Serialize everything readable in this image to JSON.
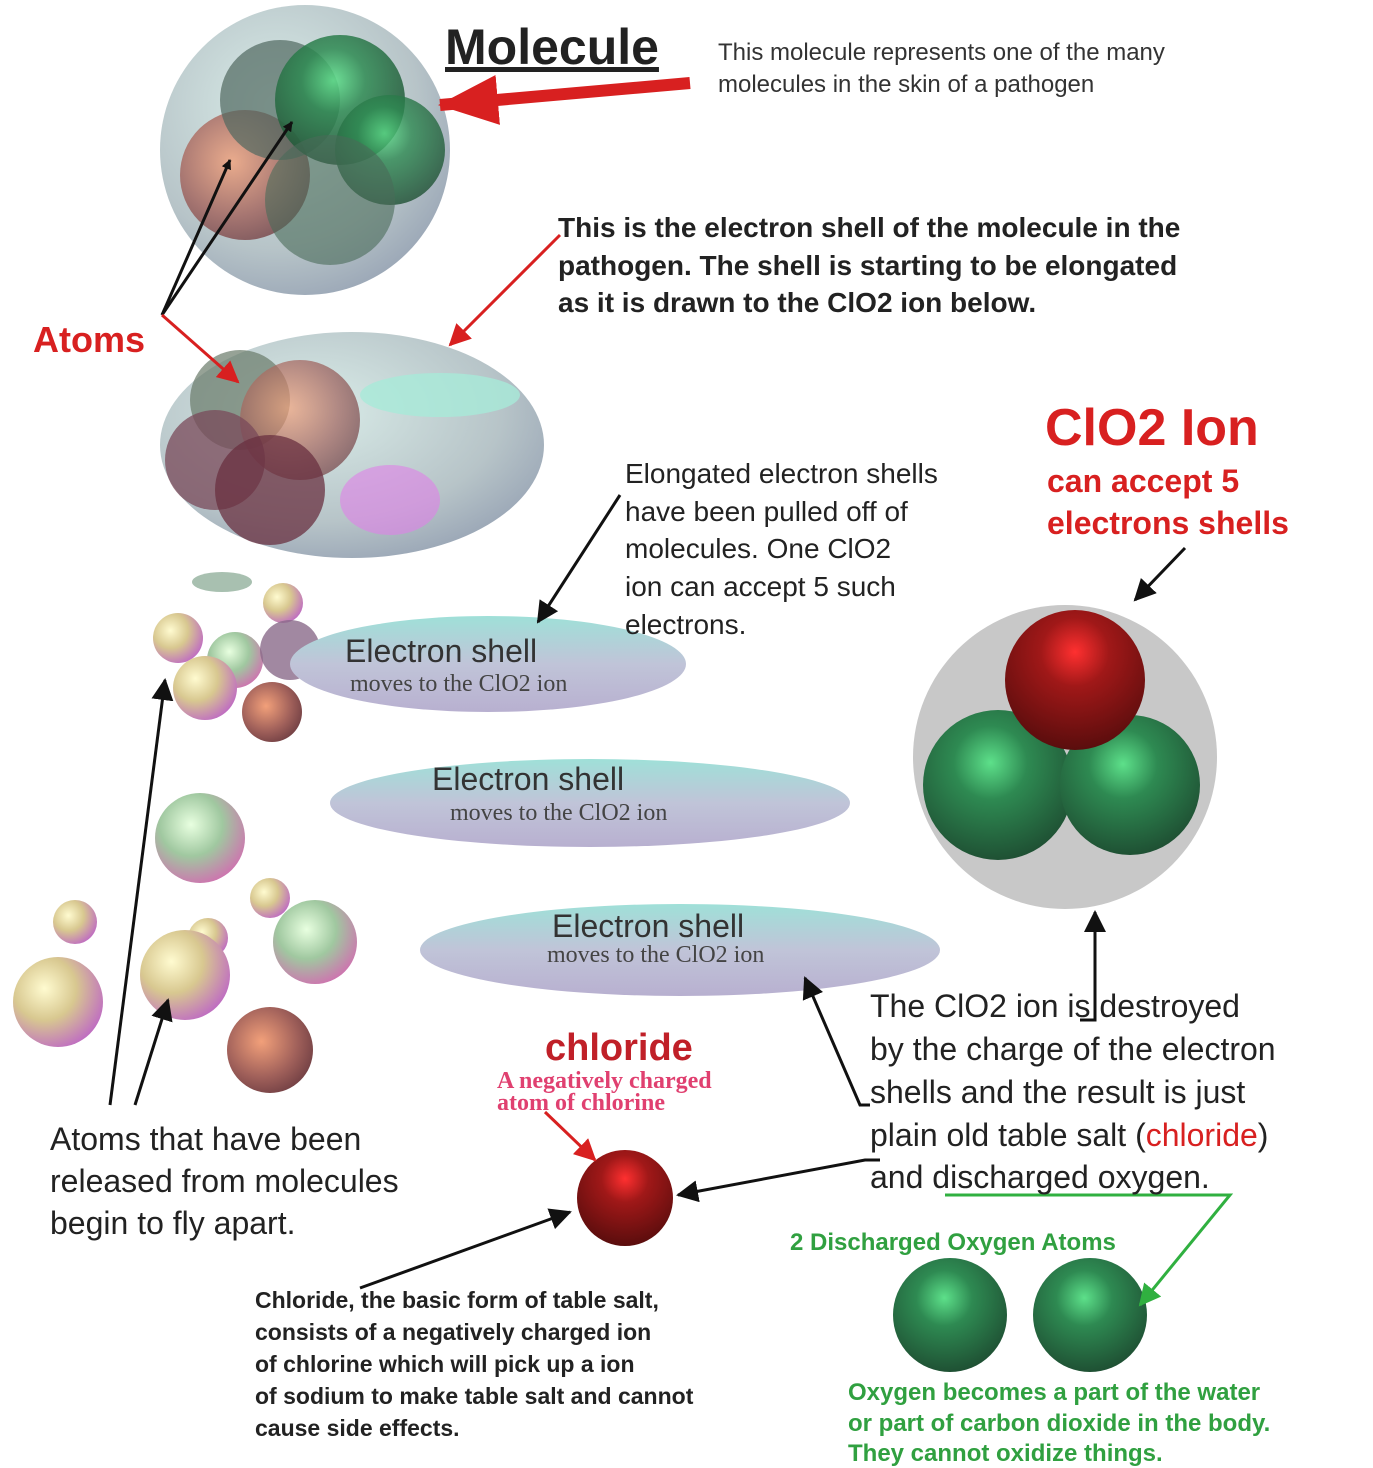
{
  "title": "Molecule",
  "molecule_note": [
    "This molecule represents one of the many",
    "molecules in the skin of a pathogen"
  ],
  "shell_note": [
    "This is the electron shell of the molecule in the",
    "pathogen.  The shell is starting to be elongated",
    "as it is drawn to the ClO2 ion below."
  ],
  "atoms_label": "Atoms",
  "ion": {
    "title": "ClO2 Ion",
    "subtitle": [
      "can accept 5",
      "electrons shells"
    ]
  },
  "elongated_note": [
    "Elongated electron shells",
    "have been pulled off of",
    "molecules.  One ClO2",
    "ion can accept 5 such",
    "electrons."
  ],
  "shells": [
    {
      "label": "Electron shell",
      "sub": "moves to the ClO2 ion"
    },
    {
      "label": "Electron shell",
      "sub": "moves to the ClO2 ion"
    },
    {
      "label": "Electron shell",
      "sub": "moves to the ClO2 ion"
    }
  ],
  "chloride": {
    "title": "chloride",
    "sub": [
      "A negatively charged",
      "atom of chlorine"
    ]
  },
  "released_note": [
    "Atoms that have been",
    "released from molecules",
    "begin to fly apart."
  ],
  "destroyed_note": {
    "lines": [
      "The ClO2 ion is destroyed",
      "by the charge of the electron",
      "shells and the result is just"
    ],
    "line4": [
      "plain old table salt (",
      "chloride",
      ")"
    ],
    "line5": "and discharged oxygen."
  },
  "oxygen_label": "2 Discharged Oxygen Atoms",
  "chloride_note": [
    "Chloride, the basic form of table salt,",
    "consists of a negatively charged ion",
    "of chlorine which will pick up a ion",
    "of sodium to make table salt and cannot",
    "cause side effects."
  ],
  "oxygen_note": [
    "Oxygen becomes a part of the water",
    "or part of carbon dioxide in the body.",
    "They cannot oxidize things."
  ]
}
